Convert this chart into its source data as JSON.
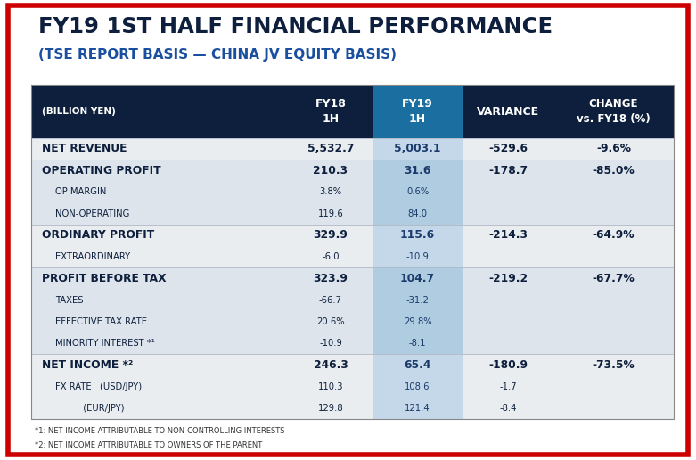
{
  "title_line1": "FY19 1ST HALF FINANCIAL PERFORMANCE",
  "title_line2": "(TSE REPORT BASIS — CHINA JV EQUITY BASIS)",
  "outer_border_color": "#cc0000",
  "bg_color": "#ffffff",
  "header_bg": "#0d1f3c",
  "header_text_color": "#ffffff",
  "header_fy19_bg": "#1a6fa0",
  "col_headers": [
    "(BILLION YEN)",
    "FY18\n1H",
    "FY19\n1H",
    "VARIANCE",
    "CHANGE\nvs. FY18 (%)"
  ],
  "fy19_col_bg_odd": "#c5d9e8",
  "fy19_col_bg_even": "#a8c8e0",
  "row_bg_odd": "#eaecef",
  "row_bg_even": "#d6dfe8",
  "rows": [
    {
      "label": "NET REVENUE",
      "label_bold": true,
      "sub_labels": [],
      "fy18": [
        "5,532.7"
      ],
      "fy19": [
        "5,003.1"
      ],
      "variance": [
        "-529.6"
      ],
      "change": [
        "-9.6%"
      ],
      "fy18_bold": [
        true
      ],
      "fy19_bold": [
        true
      ],
      "variance_bold": [
        true
      ],
      "change_bold": [
        true
      ]
    },
    {
      "label": "OPERATING PROFIT",
      "label_bold": true,
      "sub_labels": [
        "OP MARGIN",
        "NON-OPERATING"
      ],
      "fy18": [
        "210.3",
        "3.8%",
        "119.6"
      ],
      "fy19": [
        "31.6",
        "0.6%",
        "84.0"
      ],
      "variance": [
        "-178.7",
        "",
        ""
      ],
      "change": [
        "-85.0%",
        "",
        ""
      ],
      "fy18_bold": [
        true,
        false,
        false
      ],
      "fy19_bold": [
        true,
        false,
        false
      ],
      "variance_bold": [
        true,
        false,
        false
      ],
      "change_bold": [
        true,
        false,
        false
      ]
    },
    {
      "label": "ORDINARY PROFIT",
      "label_bold": true,
      "sub_labels": [
        "EXTRAORDINARY"
      ],
      "fy18": [
        "329.9",
        "-6.0"
      ],
      "fy19": [
        "115.6",
        "-10.9"
      ],
      "variance": [
        "-214.3",
        ""
      ],
      "change": [
        "-64.9%",
        ""
      ],
      "fy18_bold": [
        true,
        false
      ],
      "fy19_bold": [
        true,
        false
      ],
      "variance_bold": [
        true,
        false
      ],
      "change_bold": [
        true,
        false
      ]
    },
    {
      "label": "PROFIT BEFORE TAX",
      "label_bold": true,
      "sub_labels": [
        "TAXES",
        "EFFECTIVE TAX RATE",
        "MINORITY INTEREST *¹"
      ],
      "fy18": [
        "323.9",
        "-66.7",
        "20.6%",
        "-10.9"
      ],
      "fy19": [
        "104.7",
        "-31.2",
        "29.8%",
        "-8.1"
      ],
      "variance": [
        "-219.2",
        "",
        "",
        ""
      ],
      "change": [
        "-67.7%",
        "",
        "",
        ""
      ],
      "fy18_bold": [
        true,
        false,
        false,
        false
      ],
      "fy19_bold": [
        true,
        false,
        false,
        false
      ],
      "variance_bold": [
        true,
        false,
        false,
        false
      ],
      "change_bold": [
        true,
        false,
        false,
        false
      ]
    },
    {
      "label": "NET INCOME *²",
      "label_bold": true,
      "sub_labels": [
        "FX RATE   (USD/JPY)",
        "          (EUR/JPY)"
      ],
      "fy18": [
        "246.3",
        "110.3",
        "129.8"
      ],
      "fy19": [
        "65.4",
        "108.6",
        "121.4"
      ],
      "variance": [
        "-180.9",
        "-1.7",
        "-8.4"
      ],
      "change": [
        "-73.5%",
        "",
        ""
      ],
      "fy18_bold": [
        true,
        false,
        false
      ],
      "fy19_bold": [
        true,
        false,
        false
      ],
      "variance_bold": [
        true,
        false,
        false
      ],
      "change_bold": [
        true,
        false,
        false
      ]
    }
  ],
  "footnotes": [
    "*1: NET INCOME ATTRIBUTABLE TO NON-CONTROLLING INTERESTS",
    "*2: NET INCOME ATTRIBUTABLE TO OWNERS OF THE PARENT"
  ],
  "col_starts": [
    0.045,
    0.415,
    0.535,
    0.665,
    0.795
  ],
  "col_ends": [
    0.415,
    0.535,
    0.665,
    0.795,
    0.968
  ]
}
